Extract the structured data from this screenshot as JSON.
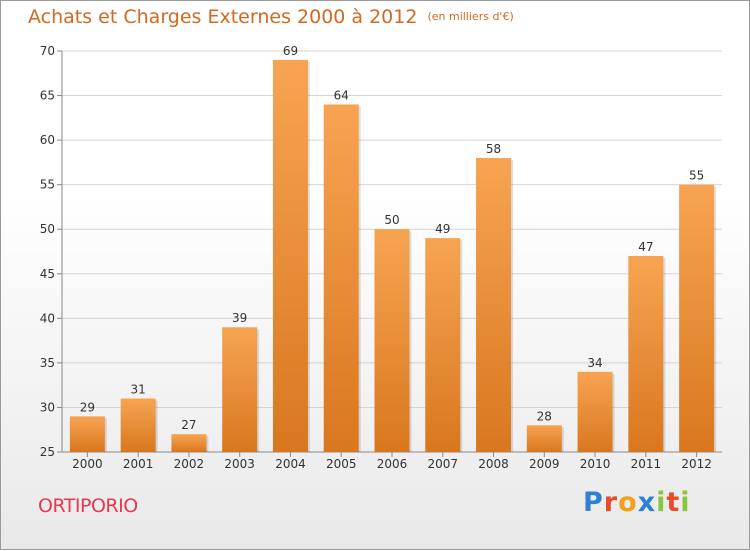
{
  "title": "Achats et Charges Externes 2000 à 2012",
  "subtitle": "(en milliers d'€)",
  "commune": "ORTIPORIO",
  "logo": "Proxiti",
  "colors": {
    "title": "#d2691e",
    "commune": "#e8384f",
    "bar_top": "#f7a452",
    "bar_bottom": "#d9771f",
    "logo": [
      "#2f7fd6",
      "#e84b2c",
      "#f3a01a",
      "#2f7fd6",
      "#8bc53f",
      "#e84b2c",
      "#8bc53f"
    ]
  },
  "chart_data": {
    "type": "bar",
    "categories": [
      "2000",
      "2001",
      "2002",
      "2003",
      "2004",
      "2005",
      "2006",
      "2007",
      "2008",
      "2009",
      "2010",
      "2011",
      "2012"
    ],
    "values": [
      29,
      31,
      27,
      39,
      69,
      64,
      50,
      49,
      58,
      28,
      34,
      47,
      55
    ],
    "data_labels": [
      "29",
      "31",
      "27",
      "39",
      "69",
      "64",
      "50",
      "49",
      "58",
      "28",
      "34",
      "47",
      "55"
    ],
    "ylim": [
      25,
      70
    ],
    "yticks": [
      25,
      30,
      35,
      40,
      45,
      50,
      55,
      60,
      65,
      70
    ],
    "grid": true,
    "xlabel": "",
    "ylabel": ""
  }
}
